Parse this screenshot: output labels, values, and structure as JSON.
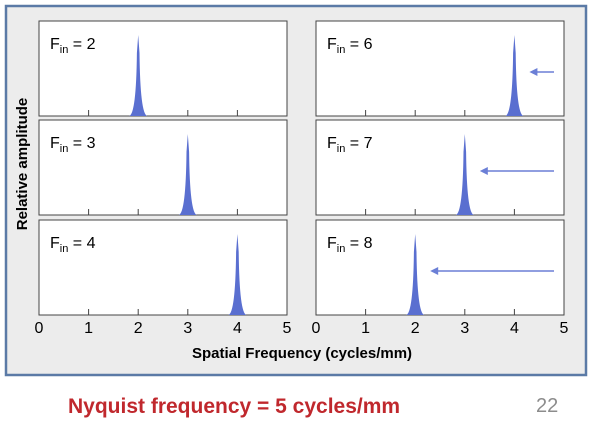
{
  "chart_data": {
    "type": "line",
    "layout": "3x2 panel grid",
    "xlabel": "Spatial Frequency (cycles/mm)",
    "ylabel": "Relative amplitude",
    "xlim": [
      0,
      5
    ],
    "x_ticks": [
      "0",
      "1",
      "2",
      "3",
      "4",
      "5"
    ],
    "grid": false,
    "panels": [
      {
        "label_main": "F",
        "label_sub": "in",
        "label_rest": " = 2",
        "peak_x": 2,
        "peak_y": 1.0,
        "aliased": false
      },
      {
        "label_main": "F",
        "label_sub": "in",
        "label_rest": " = 6",
        "peak_x": 4,
        "peak_y": 1.0,
        "aliased": true
      },
      {
        "label_main": "F",
        "label_sub": "in",
        "label_rest": " = 3",
        "peak_x": 3,
        "peak_y": 1.0,
        "aliased": false
      },
      {
        "label_main": "F",
        "label_sub": "in",
        "label_rest": " = 7",
        "peak_x": 3,
        "peak_y": 1.0,
        "aliased": true
      },
      {
        "label_main": "F",
        "label_sub": "in",
        "label_rest": " = 4",
        "peak_x": 4,
        "peak_y": 1.0,
        "aliased": false
      },
      {
        "label_main": "F",
        "label_sub": "in",
        "label_rest": " = 8",
        "peak_x": 2,
        "peak_y": 1.0,
        "aliased": true
      }
    ]
  },
  "caption": {
    "text": "Nyquist frequency = 5 cycles/mm",
    "slide_number": "22"
  },
  "colors": {
    "figure_background": "#ececec",
    "figure_border": "#5b7aa6",
    "panel_background": "#ffffff",
    "peak_fill": "#5a6fd0",
    "arrow": "#6b7fd6",
    "caption_text": "#c0282d",
    "slide_number": "#8c8c8c"
  }
}
